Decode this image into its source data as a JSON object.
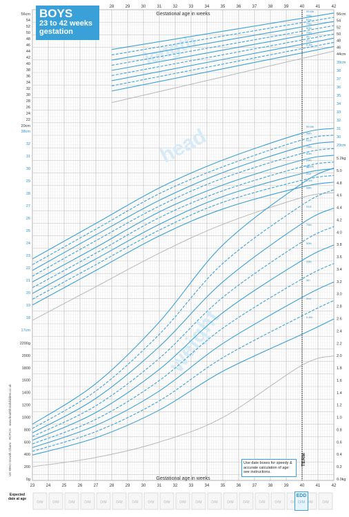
{
  "header": {
    "title_main": "BOYS",
    "title_sub1": "23 to 42 weeks",
    "title_sub2": "gestation"
  },
  "axis": {
    "top_label": "Gestational age in weeks",
    "bottom_label": "Gestational age in weeks",
    "weeks": [
      "23",
      "24",
      "25",
      "26",
      "27",
      "28",
      "29",
      "30",
      "31",
      "32",
      "33",
      "34",
      "35",
      "36",
      "37",
      "38",
      "39",
      "40",
      "41",
      "42"
    ],
    "top_weeks_shown": [
      "28",
      "29",
      "30",
      "31",
      "32",
      "33",
      "34",
      "35",
      "36",
      "37",
      "38",
      "39",
      "40",
      "41",
      "42"
    ],
    "term_label": "TERM",
    "edd_label": "EDD",
    "dm_label": "D/M"
  },
  "left_scales": {
    "length": [
      "56cm",
      "54",
      "52",
      "50",
      "48",
      "46",
      "44",
      "42",
      "40",
      "38",
      "36",
      "34",
      "32",
      "30",
      "28",
      "26",
      "24",
      "22",
      "20cm"
    ],
    "head": [
      "38cm",
      "32",
      "31",
      "30",
      "29",
      "28",
      "27",
      "26",
      "25",
      "24",
      "23",
      "22",
      "21",
      "20",
      "19",
      "18",
      "17cm"
    ],
    "weight": [
      "2200g",
      "2000",
      "1800",
      "1600",
      "1400",
      "1200",
      "1000",
      "800",
      "600",
      "400",
      "200",
      "0g"
    ]
  },
  "right_scales": {
    "length": [
      "56cm",
      "54",
      "52",
      "50",
      "48",
      "46",
      "44cm"
    ],
    "head": [
      "39cm",
      "38",
      "37",
      "36",
      "35",
      "34",
      "33",
      "32",
      "31",
      "30",
      "29cm"
    ],
    "weight": [
      "5.2kg",
      "5.0",
      "4.8",
      "4.6",
      "4.4",
      "4.2",
      "4.0",
      "3.8",
      "3.6",
      "3.4",
      "3.2",
      "3.0",
      "2.8",
      "2.6",
      "2.4",
      "2.2",
      "2.0",
      "1.8",
      "1.6",
      "1.4",
      "1.2",
      "1.0",
      "0.8",
      "0.6",
      "0.4",
      "0.2",
      "0.0kg"
    ]
  },
  "section_watermarks": [
    "length",
    "head",
    "weight"
  ],
  "bottom_row": {
    "label_line1": "Expected",
    "label_line2": "date at age",
    "cells": [
      "D/M",
      "D/M",
      "D/M",
      "D/M",
      "D/M",
      "D/M",
      "D/M",
      "D/M",
      "D/M",
      "D/M",
      "D/M",
      "D/M",
      "D/M",
      "D/M",
      "D/M",
      "D/M",
      "D/M",
      "D/M",
      "D/M"
    ]
  },
  "note": "Use date boxes for speedy & accurate calculation of age: see instructions.",
  "side_text": "UK-WHO Growth Charts · RCPCH · www.healthforallchildren.co.uk",
  "colors": {
    "blue": "#3aa0d8",
    "grid": "#cfcfcf",
    "grey_line": "#b8b8b8",
    "label_blue": "#2f8fc9"
  },
  "chart_data": [
    {
      "type": "line",
      "title": "Length",
      "xlabel": "Gestational age in weeks",
      "ylabel": "cm",
      "xlim": [
        23,
        42
      ],
      "ylim": [
        20,
        56
      ],
      "x": [
        28,
        42
      ],
      "series": [
        {
          "name": "99.6th",
          "values": [
            44.5,
            55.8
          ]
        },
        {
          "name": "98th",
          "values": [
            42.8,
            54.5
          ]
        },
        {
          "name": "91st",
          "values": [
            41.2,
            53.2
          ]
        },
        {
          "name": "75th",
          "values": [
            39.6,
            51.9
          ]
        },
        {
          "name": "50th",
          "values": [
            38.0,
            50.6
          ]
        },
        {
          "name": "25th",
          "values": [
            36.4,
            49.3
          ]
        },
        {
          "name": "9th",
          "values": [
            34.8,
            48.0
          ]
        },
        {
          "name": "2nd",
          "values": [
            33.2,
            46.7
          ]
        },
        {
          "name": "0.4th",
          "values": [
            31.6,
            45.4
          ]
        },
        {
          "name": "low",
          "values": [
            28.0,
            44.0
          ]
        }
      ]
    },
    {
      "type": "line",
      "title": "Head",
      "xlabel": "Gestational age in weeks",
      "ylabel": "cm",
      "xlim": [
        23,
        42
      ],
      "ylim": [
        17,
        39
      ],
      "x": [
        23,
        27,
        31,
        35,
        40,
        42
      ],
      "series": [
        {
          "name": "99.6th",
          "values": [
            24.4,
            28.1,
            31.8,
            34.7,
            37.5,
            38.0
          ]
        },
        {
          "name": "98th",
          "values": [
            23.8,
            27.5,
            31.2,
            34.0,
            36.8,
            37.3
          ]
        },
        {
          "name": "91st",
          "values": [
            23.2,
            26.9,
            30.5,
            33.4,
            36.1,
            36.6
          ]
        },
        {
          "name": "75th",
          "values": [
            22.6,
            26.3,
            29.9,
            32.8,
            35.4,
            35.9
          ]
        },
        {
          "name": "50th",
          "values": [
            22.0,
            25.6,
            29.3,
            32.1,
            34.7,
            35.2
          ]
        },
        {
          "name": "25th",
          "values": [
            21.4,
            25.0,
            28.7,
            31.5,
            34.0,
            34.5
          ]
        },
        {
          "name": "9th",
          "values": [
            20.8,
            24.4,
            28.0,
            30.9,
            33.3,
            33.8
          ]
        },
        {
          "name": "2nd",
          "values": [
            20.2,
            23.8,
            27.4,
            30.3,
            32.6,
            33.1
          ]
        },
        {
          "name": "0.4th",
          "values": [
            19.6,
            23.2,
            26.8,
            29.6,
            31.9,
            32.4
          ]
        },
        {
          "name": "low",
          "values": [
            18.0,
            21.5,
            25.0,
            28.0,
            30.8,
            31.3
          ]
        }
      ]
    },
    {
      "type": "line",
      "title": "Weight",
      "xlabel": "Gestational age in weeks",
      "ylabel": "kg",
      "xlim": [
        23,
        42
      ],
      "ylim": [
        0,
        5.2
      ],
      "x": [
        23,
        27,
        31,
        35,
        40,
        42
      ],
      "series": [
        {
          "name": "99.6th",
          "values": [
            0.89,
            1.55,
            2.55,
            3.8,
            4.8,
            5.05
          ]
        },
        {
          "name": "98th",
          "values": [
            0.82,
            1.43,
            2.35,
            3.5,
            4.45,
            4.7
          ]
        },
        {
          "name": "91st",
          "values": [
            0.75,
            1.31,
            2.15,
            3.2,
            4.15,
            4.4
          ]
        },
        {
          "name": "75th",
          "values": [
            0.69,
            1.19,
            1.96,
            2.95,
            3.85,
            4.1
          ]
        },
        {
          "name": "50th",
          "values": [
            0.63,
            1.08,
            1.78,
            2.7,
            3.55,
            3.8
          ]
        },
        {
          "name": "25th",
          "values": [
            0.57,
            0.97,
            1.6,
            2.45,
            3.25,
            3.5
          ]
        },
        {
          "name": "9th",
          "values": [
            0.51,
            0.87,
            1.43,
            2.2,
            2.95,
            3.2
          ]
        },
        {
          "name": "2nd",
          "values": [
            0.45,
            0.77,
            1.27,
            1.97,
            2.65,
            2.9
          ]
        },
        {
          "name": "0.4th",
          "values": [
            0.39,
            0.67,
            1.12,
            1.75,
            2.35,
            2.6
          ]
        },
        {
          "name": "low",
          "values": [
            0.2,
            0.35,
            0.6,
            1.0,
            1.85,
            2.0
          ]
        }
      ]
    }
  ]
}
